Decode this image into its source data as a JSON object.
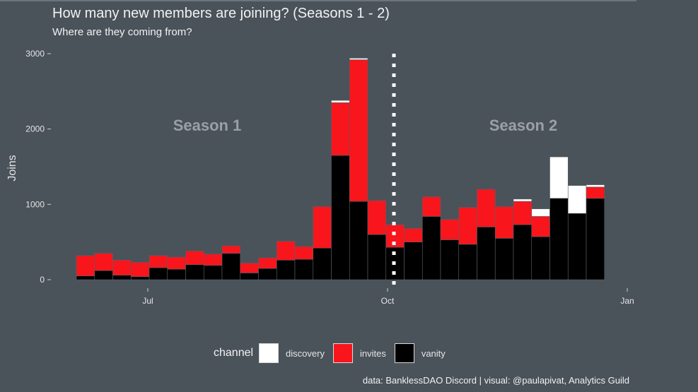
{
  "header": {
    "title": "How many new members are joining? (Seasons 1 - 2)",
    "subtitle": "Where are they coming from?"
  },
  "caption": "data: BanklessDAO Discord | visual: @paulapivat, Analytics Guild",
  "legend": {
    "title": "channel",
    "items": [
      {
        "label": "discovery",
        "color": "#ffffff"
      },
      {
        "label": "invites",
        "color": "#f8151c"
      },
      {
        "label": "vanity",
        "color": "#000000"
      }
    ]
  },
  "chart_data": {
    "type": "bar",
    "stacked": true,
    "xlabel": "",
    "ylabel": "Joins",
    "ylim": [
      0,
      3000
    ],
    "yticks": [
      0,
      1000,
      2000,
      3000
    ],
    "xticks": [
      "Jul",
      "Oct",
      "Jan"
    ],
    "grid": false,
    "legend_position": "bottom",
    "annotations": [
      {
        "text": "Season 1"
      },
      {
        "text": "Season 2"
      }
    ],
    "season_boundary": "Oct",
    "series": [
      {
        "name": "vanity",
        "color": "#000000",
        "values": [
          50,
          120,
          60,
          40,
          160,
          140,
          200,
          190,
          350,
          90,
          150,
          260,
          270,
          420,
          1650,
          1040,
          600,
          430,
          500,
          840,
          530,
          470,
          700,
          550,
          730,
          570,
          1080,
          880,
          1080
        ]
      },
      {
        "name": "invites",
        "color": "#f8151c",
        "values": [
          270,
          230,
          200,
          190,
          160,
          160,
          180,
          150,
          100,
          130,
          140,
          250,
          170,
          550,
          700,
          1880,
          450,
          300,
          180,
          260,
          270,
          490,
          500,
          420,
          310,
          270,
          0,
          0,
          150
        ]
      },
      {
        "name": "discovery",
        "color": "#ffffff",
        "values": [
          0,
          0,
          0,
          0,
          0,
          0,
          0,
          0,
          0,
          0,
          0,
          0,
          0,
          0,
          30,
          20,
          0,
          0,
          0,
          0,
          0,
          0,
          0,
          0,
          30,
          100,
          550,
          370,
          30
        ]
      }
    ]
  }
}
